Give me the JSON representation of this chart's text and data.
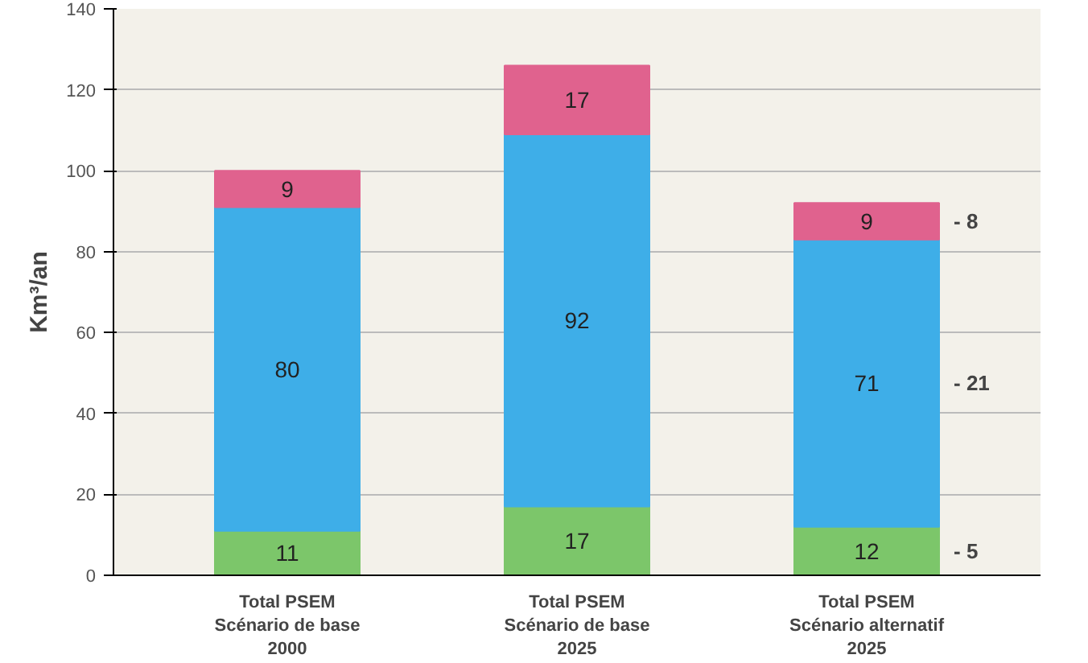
{
  "chart_data": {
    "type": "bar",
    "stacked": true,
    "ylabel": "Km³/an",
    "categories": [
      "Total PSEM\nScénario de base\n2000",
      "Total PSEM\nScénario de base\n2025",
      "Total PSEM\nScénario alternatif\n2025"
    ],
    "series": [
      {
        "color": "#7cc66a",
        "values": [
          11,
          17,
          12
        ]
      },
      {
        "color": "#3eaee8",
        "values": [
          80,
          92,
          71
        ]
      },
      {
        "color": "#e0628e",
        "values": [
          9,
          17,
          9
        ]
      }
    ],
    "data_labels": true,
    "ylim": [
      0,
      140
    ],
    "yticks": [
      0,
      20,
      40,
      60,
      80,
      100,
      120,
      140
    ],
    "grid": "y",
    "annotations": [
      "- 8",
      "- 21",
      "- 5"
    ]
  }
}
